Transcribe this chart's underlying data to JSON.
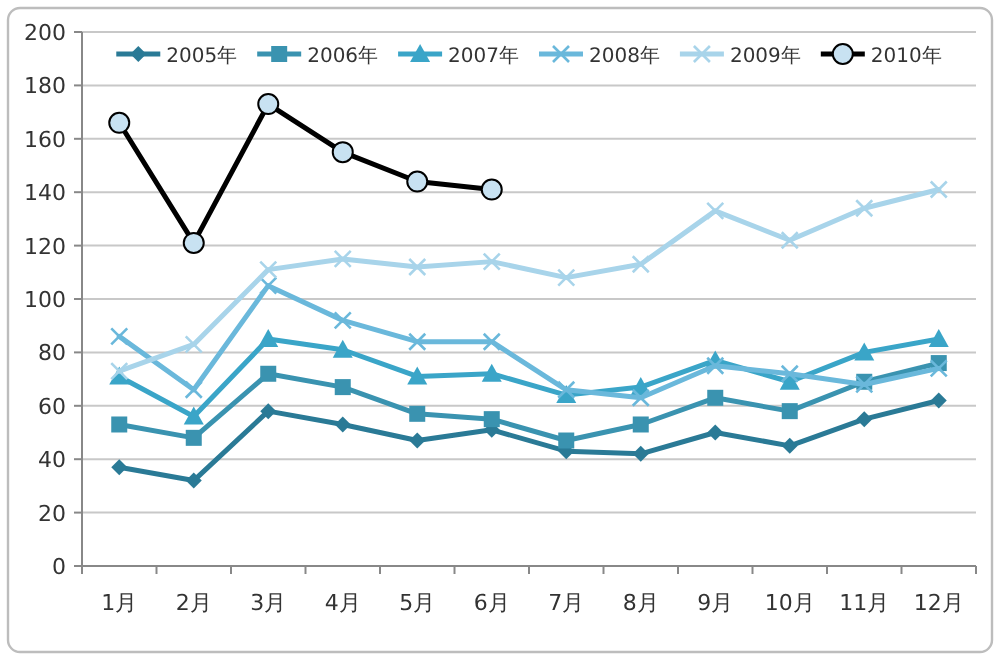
{
  "chart_data": {
    "type": "line",
    "categories": [
      "1月",
      "2月",
      "3月",
      "4月",
      "5月",
      "6月",
      "7月",
      "8月",
      "9月",
      "10月",
      "11月",
      "12月"
    ],
    "series": [
      {
        "name": "2005年",
        "color": "#2a7a96",
        "marker": "diamond",
        "values": [
          37,
          32,
          58,
          53,
          47,
          51,
          43,
          42,
          50,
          45,
          55,
          62
        ]
      },
      {
        "name": "2006年",
        "color": "#3a93b0",
        "marker": "square",
        "values": [
          53,
          48,
          72,
          67,
          57,
          55,
          47,
          53,
          63,
          58,
          69,
          76
        ]
      },
      {
        "name": "2007年",
        "color": "#3aa5c8",
        "marker": "triangle",
        "values": [
          71,
          56,
          85,
          81,
          71,
          72,
          64,
          67,
          77,
          69,
          80,
          85
        ]
      },
      {
        "name": "2008年",
        "color": "#6ab8db",
        "marker": "cross",
        "values": [
          86,
          66,
          105,
          92,
          84,
          84,
          66,
          63,
          75,
          72,
          68,
          74
        ]
      },
      {
        "name": "2009年",
        "color": "#a8d4ea",
        "marker": "cross",
        "values": [
          73,
          83,
          111,
          115,
          112,
          114,
          108,
          113,
          133,
          122,
          134,
          141
        ]
      },
      {
        "name": "2010年",
        "color": "#000000",
        "marker": "circle",
        "values": [
          166,
          121,
          173,
          155,
          144,
          141,
          null,
          null,
          null,
          null,
          null,
          null
        ]
      }
    ],
    "ylim": [
      0,
      200
    ],
    "yticks": [
      0,
      20,
      40,
      60,
      80,
      100,
      120,
      140,
      160,
      180,
      200
    ],
    "grid": "y",
    "legend": "top",
    "line_style": "solid"
  }
}
